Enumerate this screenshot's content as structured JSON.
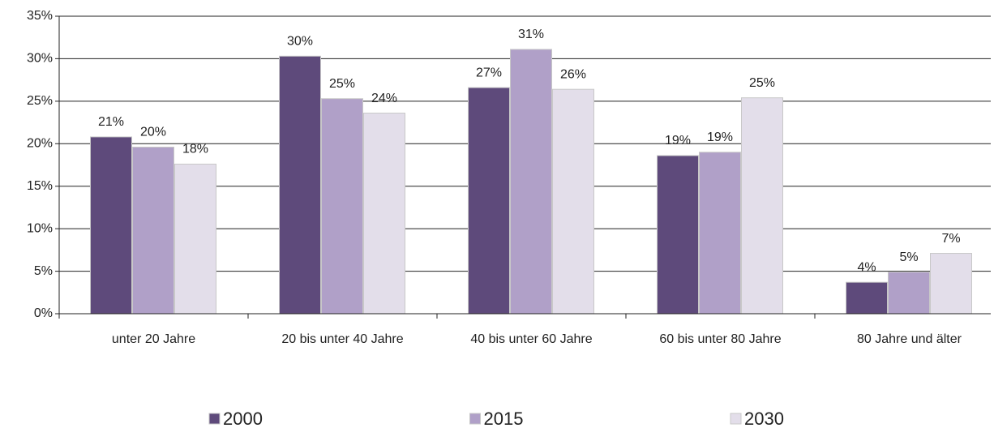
{
  "chart_data": {
    "type": "bar",
    "categories": [
      "unter 20 Jahre",
      "20 bis unter 40 Jahre",
      "40 bis unter 60 Jahre",
      "60 bis unter 80 Jahre",
      "80 Jahre und älter"
    ],
    "series": [
      {
        "name": "2000",
        "color": "#5e4a7b",
        "values": [
          20.8,
          30.3,
          26.6,
          18.6,
          3.7
        ],
        "value_labels": [
          "21%",
          "30%",
          "27%",
          "19%",
          "4%"
        ]
      },
      {
        "name": "2015",
        "color": "#b0a0c8",
        "values": [
          19.6,
          25.3,
          31.1,
          19.0,
          4.9
        ],
        "value_labels": [
          "20%",
          "25%",
          "31%",
          "19%",
          "5%"
        ]
      },
      {
        "name": "2030",
        "color": "#e3deea",
        "values": [
          17.6,
          23.6,
          26.4,
          25.4,
          7.1
        ],
        "value_labels": [
          "18%",
          "24%",
          "26%",
          "25%",
          "7%"
        ]
      }
    ],
    "ylim": [
      0,
      35
    ],
    "yticks": [
      {
        "value": 0,
        "label": "0%"
      },
      {
        "value": 5,
        "label": "5%"
      },
      {
        "value": 10,
        "label": "10%"
      },
      {
        "value": 15,
        "label": "15%"
      },
      {
        "value": 20,
        "label": "20%"
      },
      {
        "value": 25,
        "label": "25%"
      },
      {
        "value": 30,
        "label": "30%"
      },
      {
        "value": 35,
        "label": "35%"
      }
    ],
    "grid": true,
    "legend": "bottom"
  }
}
